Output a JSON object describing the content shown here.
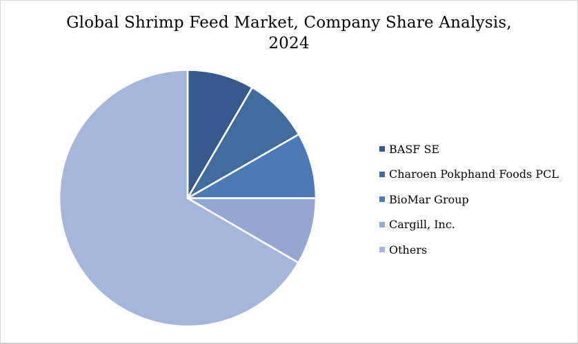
{
  "page": {
    "background": "#ffffff",
    "border_color": "#d9d9d9"
  },
  "title_lines": [
    "Global Shrimp Feed Market, Company Share Analysis,",
    "2024"
  ],
  "chart_data": {
    "type": "pie",
    "title": "Global Shrimp Feed Market, Company Share Analysis, 2024",
    "categories": [
      "BASF SE",
      "Charoen Pokphand Foods PCL",
      "BioMar Group",
      "Cargill, Inc.",
      "Others"
    ],
    "values": [
      8.4,
      8.3,
      8.3,
      8.4,
      66.6
    ],
    "unit": "%",
    "values_estimated_from_angles": true,
    "colors": [
      "#38598b",
      "#416b9c",
      "#4b7ab7",
      "#93a7d2",
      "#a4b6da"
    ],
    "slice_border_color": "#ffffff",
    "start_angle_deg": 0,
    "direction": "clockwise",
    "legend_position": "right",
    "data_labels": "none"
  }
}
